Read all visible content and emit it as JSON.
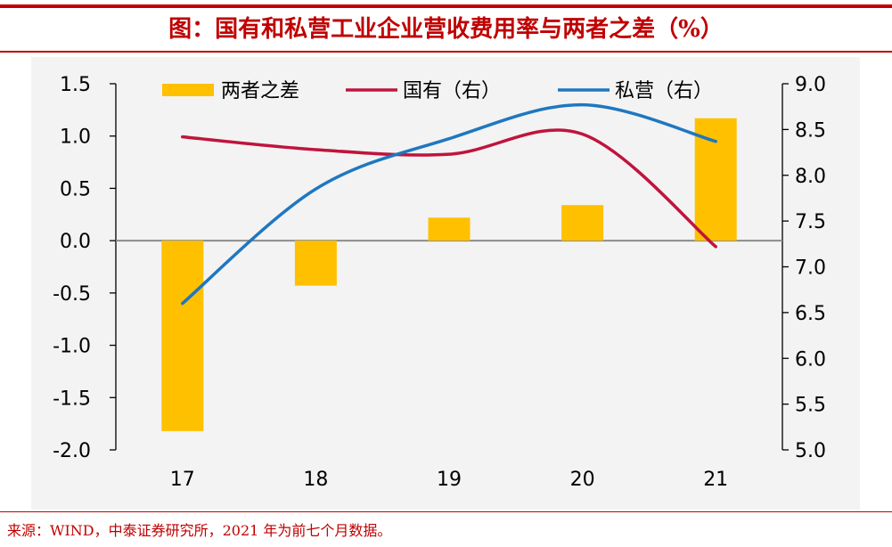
{
  "title": "图：国有和私营工业企业营收费用率与两者之差（%）",
  "source_note": "来源：WIND，中泰证券研究所，2021 年为前七个月数据。",
  "colors": {
    "bar": "#ffc000",
    "state": "#c0143c",
    "private": "#1f77c0",
    "title": "#c00000"
  },
  "chart_data": {
    "type": "bar",
    "categories": [
      "17",
      "18",
      "19",
      "20",
      "21"
    ],
    "y_left": {
      "ylim": [
        -2.0,
        1.5
      ],
      "ticks": [
        "1.5",
        "1.0",
        "0.5",
        "0.0",
        "-0.5",
        "-1.0",
        "-1.5",
        "-2.0"
      ]
    },
    "y_right": {
      "ylim": [
        5.0,
        9.0
      ],
      "ticks": [
        "9.0",
        "8.5",
        "8.0",
        "7.5",
        "7.0",
        "6.5",
        "6.0",
        "5.5",
        "5.0"
      ]
    },
    "series": [
      {
        "name": "两者之差",
        "type": "bar",
        "axis": "left",
        "values": [
          -1.82,
          -0.43,
          0.22,
          0.34,
          1.17
        ]
      },
      {
        "name": "国有（右）",
        "type": "line",
        "axis": "right",
        "values": [
          8.42,
          8.28,
          8.23,
          8.45,
          7.22
        ]
      },
      {
        "name": "私营（右）",
        "type": "line",
        "axis": "right",
        "values": [
          6.6,
          7.85,
          8.4,
          8.77,
          8.37
        ]
      }
    ],
    "legend_position": "top",
    "grid": false
  }
}
